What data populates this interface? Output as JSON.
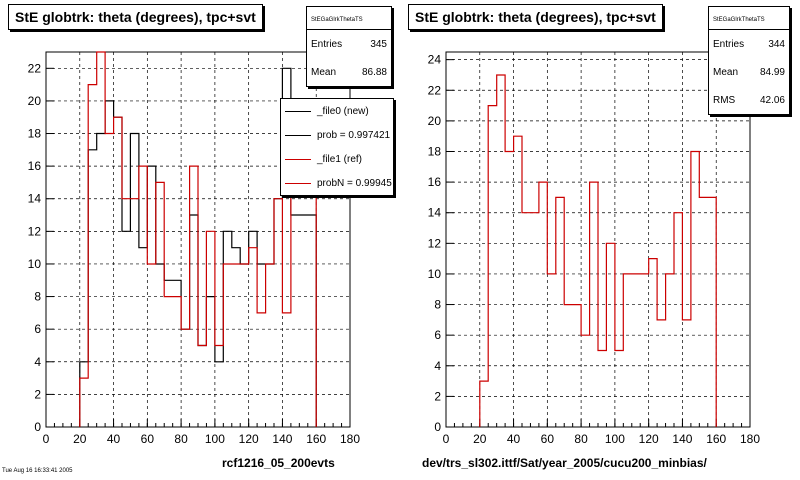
{
  "chart_data": [
    {
      "type": "histogram",
      "title": "StE globtrk: theta (degrees), tpc+svt",
      "xlim": [
        0,
        180
      ],
      "ylim": [
        0,
        23
      ],
      "x_ticks": [
        0,
        20,
        40,
        60,
        80,
        100,
        120,
        140,
        160,
        180
      ],
      "y_ticks": [
        0,
        2,
        4,
        6,
        8,
        10,
        12,
        14,
        16,
        18,
        20,
        22
      ],
      "grid": true,
      "bin_edges": [
        20,
        25,
        30,
        35,
        40,
        45,
        50,
        55,
        60,
        65,
        70,
        75,
        80,
        85,
        90,
        95,
        100,
        105,
        110,
        115,
        120,
        125,
        130,
        135,
        140,
        145,
        150,
        155,
        160
      ],
      "series": [
        {
          "name": "_file0 (new)",
          "color": "#000000",
          "values": [
            4,
            17,
            18,
            20,
            19,
            12,
            18,
            11,
            16,
            10,
            9,
            9,
            6,
            13,
            5,
            8,
            4,
            12,
            11,
            10,
            12,
            10,
            10,
            14,
            22,
            13,
            13,
            13
          ]
        },
        {
          "name": "_file1 (ref)",
          "color": "#cc0000",
          "values": [
            3,
            21,
            23,
            18,
            19,
            14,
            14,
            16,
            10,
            15,
            8,
            8,
            6,
            16,
            5,
            12,
            5,
            10,
            10,
            10,
            11,
            7,
            10,
            14,
            7,
            18,
            15,
            15
          ]
        }
      ],
      "legend": [
        "_file0 (new)",
        "prob = 0.997421",
        "_file1 (ref)",
        "probN = 0.99945"
      ],
      "stats": {
        "name": "StEGaGlrkThetaTS",
        "entries_label": "Entries",
        "entries": "345",
        "mean_label": "Mean",
        "mean": "86.88"
      },
      "caption": "rcf1216_05_200evts"
    },
    {
      "type": "histogram",
      "title": "StE globtrk: theta (degrees), tpc+svt",
      "xlim": [
        0,
        180
      ],
      "ylim": [
        0,
        24.5
      ],
      "x_ticks": [
        0,
        20,
        40,
        60,
        80,
        100,
        120,
        140,
        160,
        180
      ],
      "y_ticks": [
        0,
        2,
        4,
        6,
        8,
        10,
        12,
        14,
        16,
        18,
        20,
        22,
        24
      ],
      "grid": true,
      "bin_edges": [
        20,
        25,
        30,
        35,
        40,
        45,
        50,
        55,
        60,
        65,
        70,
        75,
        80,
        85,
        90,
        95,
        100,
        105,
        110,
        115,
        120,
        125,
        130,
        135,
        140,
        145,
        150,
        155,
        160
      ],
      "series": [
        {
          "name": "",
          "color": "#cc0000",
          "values": [
            3,
            21,
            23,
            18,
            19,
            14,
            14,
            16,
            10,
            15,
            8,
            8,
            6,
            16,
            5,
            12,
            5,
            10,
            10,
            10,
            11,
            7,
            10,
            14,
            7,
            18,
            15,
            15
          ]
        }
      ],
      "stats": {
        "name": "StEGaGlrkThetaTS",
        "entries_label": "Entries",
        "entries": "344",
        "mean_label": "Mean",
        "mean": "84.99",
        "rms_label": "RMS",
        "rms": "42.06"
      },
      "caption": "dev/trs_sl302.ittf/Sat/year_2005/cucu200_minbias/"
    }
  ],
  "datestamp": "Tue Aug 16 16:33:41 2005"
}
